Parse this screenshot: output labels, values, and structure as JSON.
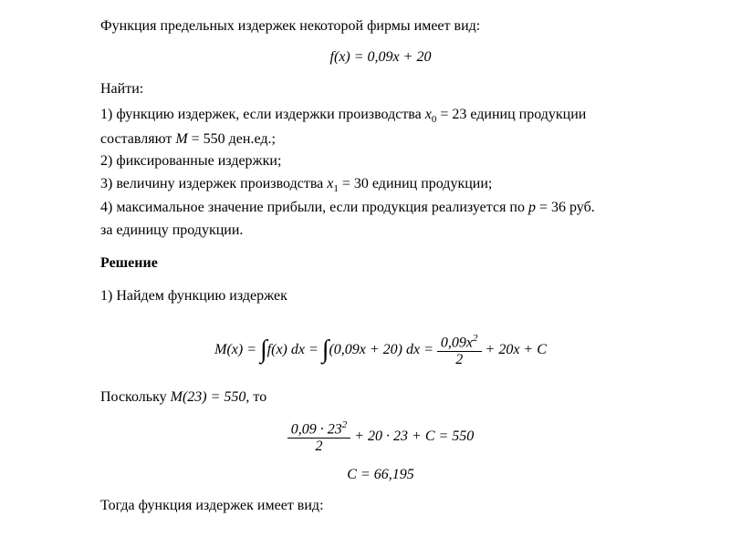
{
  "intro": "Функция предельных издержек некоторой фирмы имеет вид:",
  "eq1": {
    "fx": "f(x)",
    "eq": " = ",
    "rhs": "0,09x + 20"
  },
  "find_label": "Найти:",
  "items": {
    "i1a": "1) функцию издержек, если издержки производства ",
    "i1_var": "x",
    "i1_sub": "0",
    "i1_mid": " = 23 единиц продукции",
    "i1b_pre": "составляют ",
    "i1b_M": "M",
    "i1b_post": " = 550 ден.ед.;",
    "i2": "2) фиксированные издержки;",
    "i3a": "3) величину издержек производства ",
    "i3_var": "x",
    "i3_sub": "1",
    "i3b": " = 30 единиц продукции;",
    "i4a": "4) максимальное значение прибыли, если продукция реализуется по ",
    "i4_var": "p",
    "i4b": " = 36 руб.",
    "i4c": "за единицу продукции."
  },
  "solution_title": "Решение",
  "step1": "1) Найдем функцию издержек",
  "eq2": {
    "Mx": "M(x)",
    "eq": " = ",
    "fx": "f(x) dx",
    "integrand": "(0,09x + 20) dx",
    "frac_num": "0,09x",
    "frac_sup": "2",
    "frac_den": "2",
    "tail": " + 20x + C"
  },
  "since_pre": "Поскольку ",
  "since_M": "M(23) = 550",
  "since_post": ", то",
  "eq3": {
    "num_a": "0,09 · 23",
    "num_sup": "2",
    "den": "2",
    "tail": " + 20 · 23 + C = 550"
  },
  "eq4": "C = 66,195",
  "then": "Тогда функция издержек имеет вид:"
}
